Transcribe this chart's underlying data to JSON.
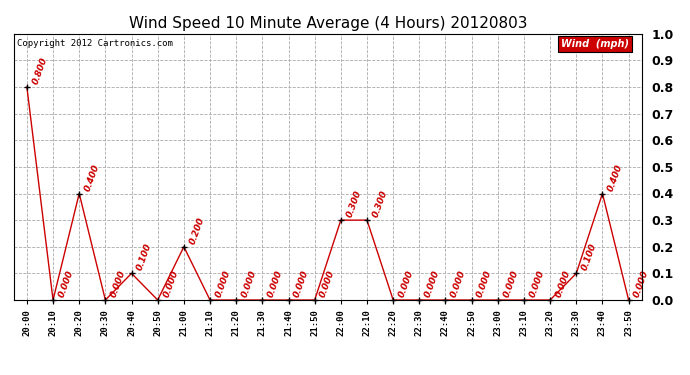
{
  "title": "Wind Speed 10 Minute Average (4 Hours) 20120803",
  "copyright_text": "Copyright 2012 Cartronics.com",
  "legend_label": "Wind  (mph)",
  "x_labels": [
    "20:00",
    "20:10",
    "20:20",
    "20:30",
    "20:40",
    "20:50",
    "21:00",
    "21:10",
    "21:20",
    "21:30",
    "21:40",
    "21:50",
    "22:00",
    "22:10",
    "22:20",
    "22:30",
    "22:40",
    "22:50",
    "23:00",
    "23:10",
    "23:20",
    "23:30",
    "23:40",
    "23:50"
  ],
  "y_values": [
    0.8,
    0.0,
    0.4,
    0.0,
    0.1,
    0.0,
    0.2,
    0.0,
    0.0,
    0.0,
    0.0,
    0.0,
    0.3,
    0.3,
    0.0,
    0.0,
    0.0,
    0.0,
    0.0,
    0.0,
    0.0,
    0.1,
    0.4,
    0.0
  ],
  "line_color": "#cc0000",
  "marker_color": "#000000",
  "annotation_color": "#cc0000",
  "legend_bg": "#cc0000",
  "legend_text_color": "#ffffff",
  "bg_color": "#ffffff",
  "grid_color": "#aaaaaa",
  "ylim": [
    0.0,
    1.0
  ],
  "yticks": [
    0.0,
    0.1,
    0.2,
    0.3,
    0.4,
    0.5,
    0.6,
    0.7,
    0.8,
    0.9,
    1.0
  ],
  "title_fontsize": 11,
  "annotation_fontsize": 6.5,
  "xlabel_fontsize": 6.5,
  "ylabel_fontsize": 8
}
